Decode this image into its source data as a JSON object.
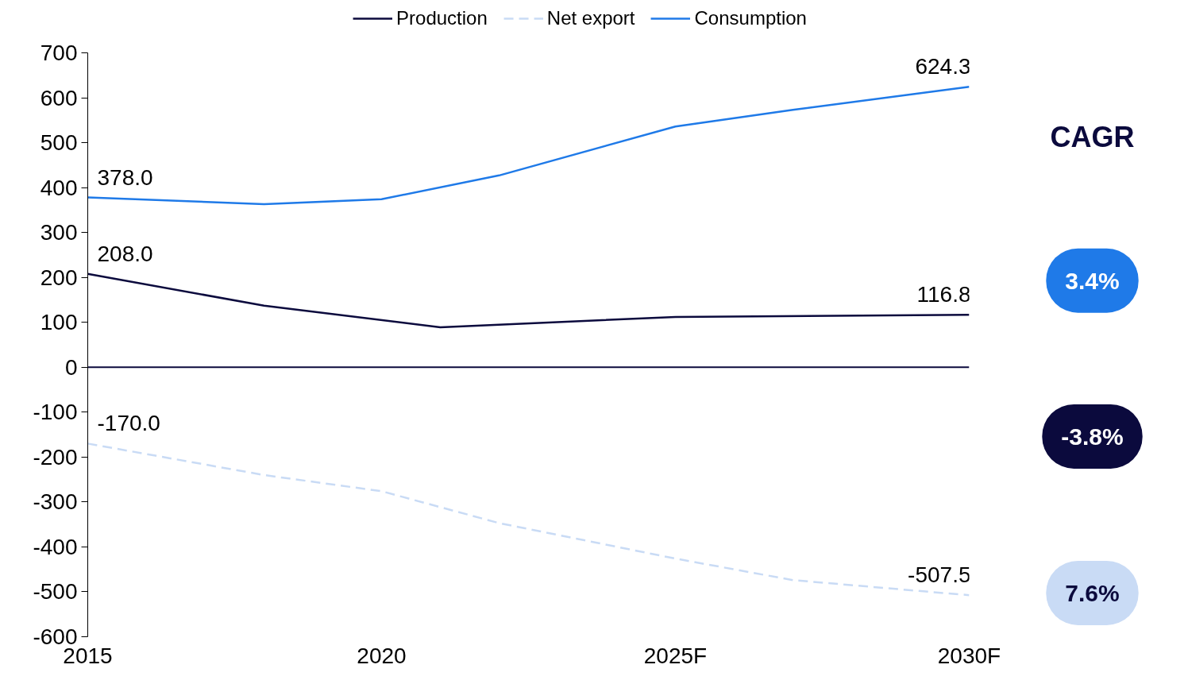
{
  "chart_data": {
    "type": "line",
    "x": [
      2015,
      2018,
      2020,
      2022,
      2025,
      2027,
      2030
    ],
    "series": [
      {
        "name": "Production",
        "color": "#0b0a3d",
        "line_style": "solid",
        "x": [
          2015,
          2018,
          2021,
          2025,
          2030
        ],
        "values": [
          208.0,
          137,
          89,
          112,
          116.8
        ],
        "value_labels": [
          "208.0",
          null,
          null,
          null,
          "116.8"
        ]
      },
      {
        "name": "Net export",
        "color": "#c9dbf5",
        "line_style": "dashed",
        "values": [
          -170.0,
          -240,
          -276,
          -347,
          -426,
          -474,
          -507.5
        ],
        "value_labels": [
          "-170.0",
          null,
          null,
          null,
          null,
          null,
          "-507.5"
        ]
      },
      {
        "name": "Consumption",
        "color": "#1f7ae8",
        "line_style": "solid",
        "values": [
          378.0,
          363,
          374,
          427,
          536,
          573,
          624.3
        ],
        "value_labels": [
          "378.0",
          null,
          null,
          null,
          null,
          null,
          "624.3"
        ]
      }
    ],
    "xlim": [
      2015,
      2030
    ],
    "xticks": [
      2015,
      2020,
      {
        "value": 2025,
        "label": "2025F"
      },
      {
        "value": 2030,
        "label": "2030F"
      }
    ],
    "ylim": [
      -600,
      700
    ],
    "yticks": [
      -600,
      -500,
      -400,
      -300,
      -200,
      -100,
      0,
      100,
      200,
      300,
      400,
      500,
      600,
      700
    ],
    "ref_lines": [
      {
        "axis": "y",
        "value": 0,
        "color": "#0b0a3d"
      }
    ],
    "annotations": [
      "CAGR",
      "3.4%",
      "-3.8%",
      "7.6%"
    ],
    "legend": "top",
    "grid": false
  }
}
